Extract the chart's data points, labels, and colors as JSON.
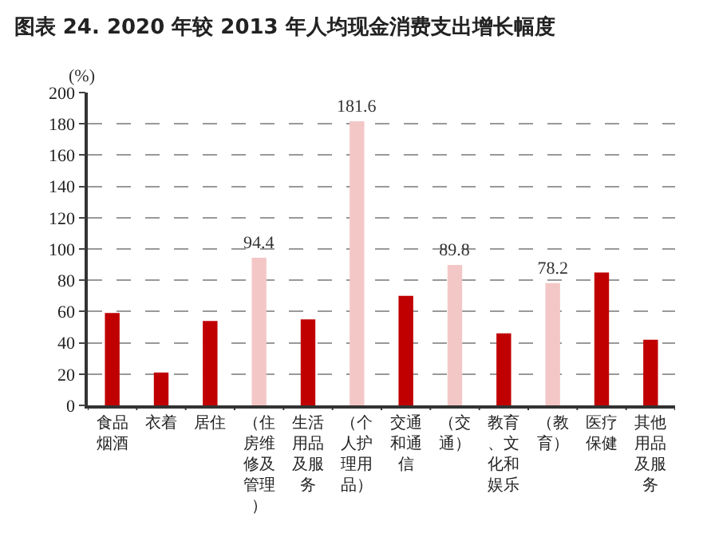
{
  "chart_data": {
    "type": "bar",
    "title": "图表 24. 2020 年较 2013 年人均现金消费支出增长幅度",
    "ylabel": "(%)",
    "categories": [
      "食品烟酒",
      "衣着",
      "居住",
      "（住房维修及管理）",
      "生活用品及服务",
      "（个人护理用品）",
      "交通和通信",
      "（交通）",
      "教育、文化和娱乐",
      "（教育）",
      "医疗保健",
      "其他用品及服务"
    ],
    "values": [
      59,
      21,
      54,
      94.4,
      55,
      181.6,
      70,
      89.8,
      46,
      78.2,
      85,
      42
    ],
    "colors": [
      "#c00000",
      "#c00000",
      "#c00000",
      "#f4c7c7",
      "#c00000",
      "#f4c7c7",
      "#c00000",
      "#f4c7c7",
      "#c00000",
      "#f4c7c7",
      "#c00000",
      "#c00000"
    ],
    "value_labels": [
      null,
      null,
      null,
      "94.4",
      null,
      "181.6",
      null,
      "89.8",
      null,
      "78.2",
      null,
      null
    ],
    "ylim": [
      0,
      200
    ],
    "yticks": [
      0,
      20,
      40,
      60,
      80,
      100,
      120,
      140,
      160,
      180,
      200
    ],
    "grid": "y"
  }
}
